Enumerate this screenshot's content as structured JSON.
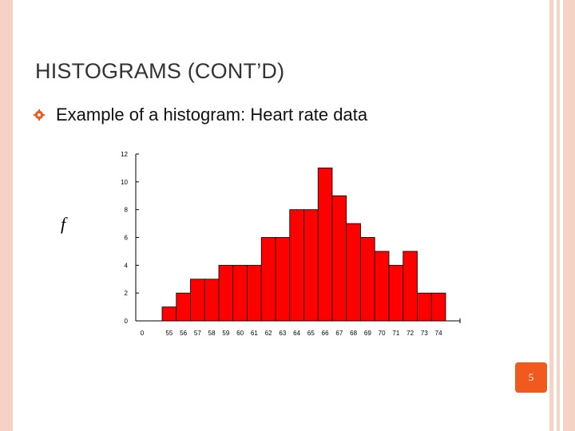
{
  "slide": {
    "title": "HISTOGRAMS (CONT’D)",
    "bullet": "Example of a histogram: Heart rate data",
    "y_label": "f",
    "page_number": "5"
  },
  "colors": {
    "bar": "#ff0000",
    "accent": "#f05a1f",
    "border": "#f6d2c4"
  },
  "chart_data": {
    "type": "bar",
    "categories": [
      "55",
      "56",
      "57",
      "58",
      "59",
      "60",
      "61",
      "62",
      "63",
      "64",
      "65",
      "66",
      "67",
      "68",
      "69",
      "70",
      "71",
      "72",
      "73",
      "74"
    ],
    "values": [
      1,
      2,
      3,
      3,
      4,
      4,
      4,
      6,
      6,
      8,
      8,
      11,
      9,
      7,
      6,
      5,
      4,
      5,
      2,
      2
    ],
    "x_origin_label": "0",
    "yticks": [
      0,
      2,
      4,
      6,
      8,
      10,
      12
    ],
    "ylim": [
      0,
      12
    ],
    "grid": false
  }
}
